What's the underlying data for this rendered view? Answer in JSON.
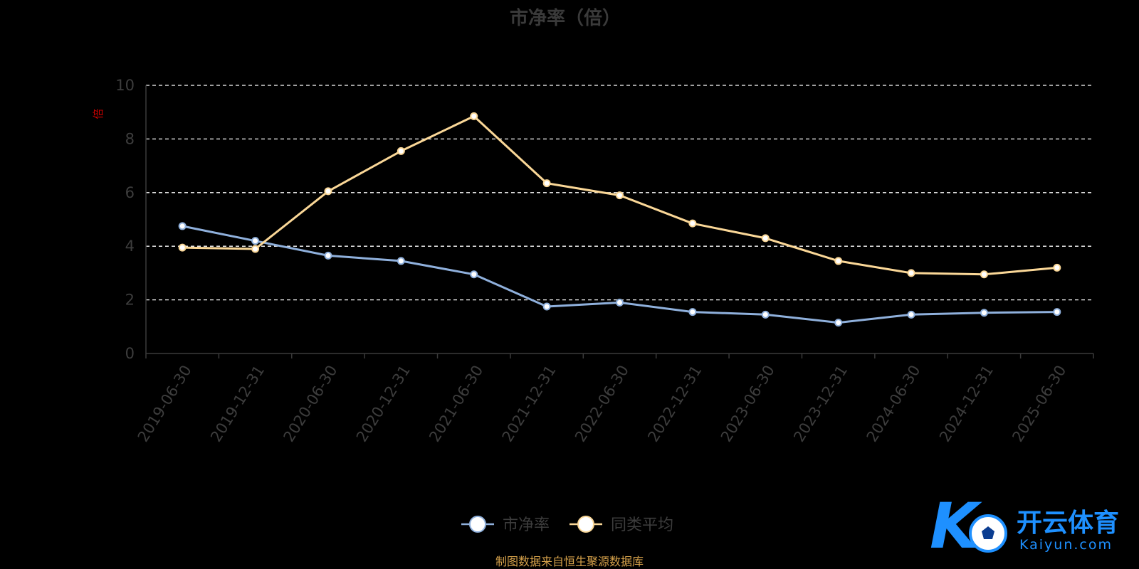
{
  "chart_data": {
    "type": "line",
    "title": "市净率（倍）",
    "ylabel": "倍",
    "ylim": [
      0,
      10
    ],
    "yticks": [
      0,
      2,
      4,
      6,
      8,
      10
    ],
    "grid": true,
    "legend_position": "bottom-center",
    "categories": [
      "2019-06-30",
      "2019-12-31",
      "2020-06-30",
      "2020-12-31",
      "2021-06-30",
      "2021-12-31",
      "2022-06-30",
      "2022-12-31",
      "2023-06-30",
      "2023-12-31",
      "2024-06-30",
      "2024-12-31",
      "2025-06-30"
    ],
    "series": [
      {
        "name": "市净率",
        "color": "#8fb0dc",
        "values": [
          4.75,
          4.2,
          3.65,
          3.45,
          2.95,
          1.75,
          1.9,
          1.55,
          1.45,
          1.15,
          1.45,
          1.52,
          1.55
        ]
      },
      {
        "name": "同类平均",
        "color": "#fad797",
        "values": [
          3.95,
          3.9,
          6.05,
          7.55,
          8.85,
          6.35,
          5.9,
          4.85,
          4.3,
          3.45,
          3.0,
          2.95,
          3.2
        ]
      }
    ]
  },
  "footer": {
    "source": "制图数据来自恒生聚源数据库"
  },
  "watermark": {
    "brand": "开云体育",
    "url": "Kaiyun.com",
    "accent": "#1e90ff"
  }
}
